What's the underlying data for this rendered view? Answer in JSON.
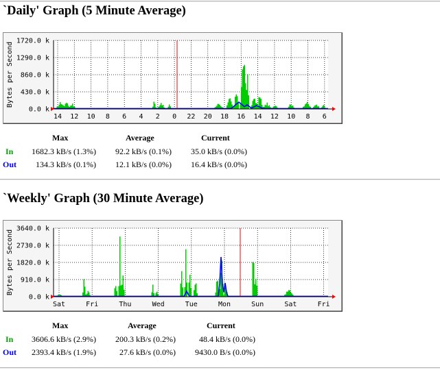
{
  "graphs": [
    {
      "title": "`Daily' Graph (5 Minute Average)",
      "chart_data": {
        "type": "area",
        "ylabel": "Bytes per Second",
        "ylim": [
          0,
          1720000
        ],
        "y_ticks": [
          "0.0 k",
          "430.0 k",
          "860.0 k",
          "1290.0 k",
          "1720.0 k"
        ],
        "x_ticks": [
          "14",
          "12",
          "10",
          "8",
          "6",
          "4",
          "2",
          "0",
          "22",
          "20",
          "18",
          "16",
          "14",
          "12",
          "10",
          "8",
          "6"
        ],
        "grid": true,
        "series": [
          {
            "name": "In",
            "color": "#00cc00"
          },
          {
            "name": "Out",
            "color": "#0000ff"
          }
        ]
      },
      "stats": {
        "headers": {
          "max": "Max",
          "average": "Average",
          "current": "Current"
        },
        "rows": [
          {
            "label": "In",
            "max": "1682.3 kB/s (1.3%)",
            "average": "92.2 kB/s (0.1%)",
            "current": "35.0 kB/s (0.0%)"
          },
          {
            "label": "Out",
            "max": "134.3 kB/s (0.1%)",
            "average": "12.1 kB/s (0.0%)",
            "current": "16.4 kB/s (0.0%)"
          }
        ]
      }
    },
    {
      "title": "`Weekly' Graph (30 Minute Average)",
      "chart_data": {
        "type": "area",
        "ylabel": "Bytes per Second",
        "ylim": [
          0,
          3640000
        ],
        "y_ticks": [
          "0.0 k",
          "910.0 k",
          "1820.0 k",
          "2730.0 k",
          "3640.0 k"
        ],
        "x_ticks": [
          "Sat",
          "Fri",
          "Thu",
          "Wed",
          "Tue",
          "Mon",
          "Sun",
          "Sat",
          "Fri"
        ],
        "grid": true,
        "series": [
          {
            "name": "In",
            "color": "#00cc00"
          },
          {
            "name": "Out",
            "color": "#0000ff"
          }
        ]
      },
      "stats": {
        "headers": {
          "max": "Max",
          "average": "Average",
          "current": "Current"
        },
        "rows": [
          {
            "label": "In",
            "max": "3606.6 kB/s (2.9%)",
            "average": "200.3 kB/s (0.2%)",
            "current": "48.4 kB/s (0.0%)"
          },
          {
            "label": "Out",
            "max": "2393.4 kB/s (1.9%)",
            "average": "27.6 kB/s (0.0%)",
            "current": "9430.0 B/s (0.0%)"
          }
        ]
      }
    }
  ]
}
